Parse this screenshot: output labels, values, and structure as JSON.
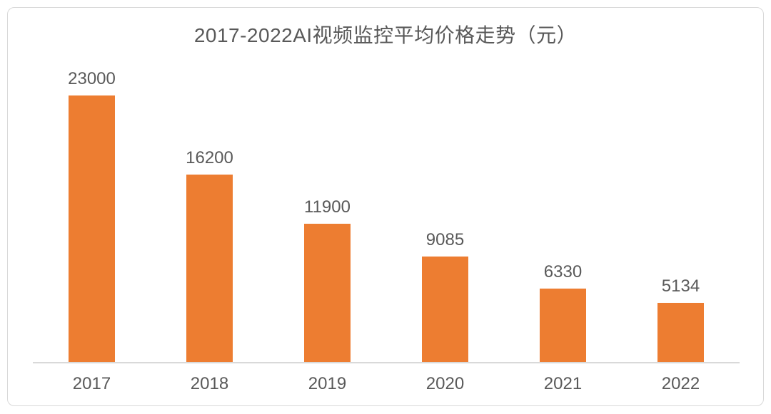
{
  "chart_data": {
    "type": "bar",
    "title": "2017-2022AI视频监控平均价格走势（元）",
    "categories": [
      "2017",
      "2018",
      "2019",
      "2020",
      "2021",
      "2022"
    ],
    "values": [
      23000,
      16200,
      11900,
      9085,
      6330,
      5134
    ],
    "xlabel": "",
    "ylabel": "",
    "ylim": [
      0,
      23000
    ],
    "grid": false,
    "legend_position": "none",
    "data_labels": true,
    "bar_color": "#ED7D31",
    "text_color": "#595959",
    "axis_line_color": "#D9D9D9"
  }
}
